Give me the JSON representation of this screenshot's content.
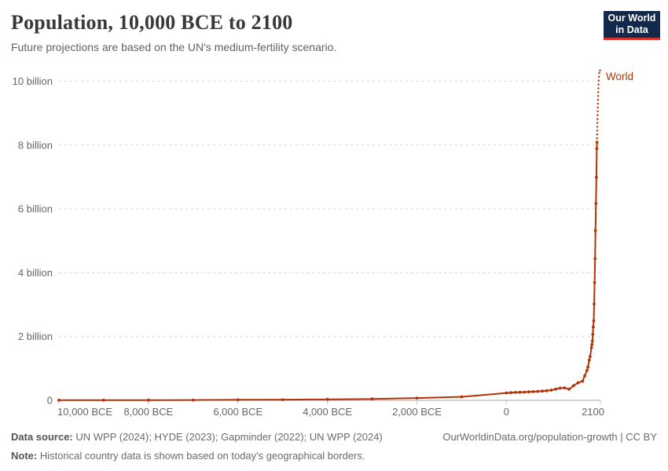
{
  "header": {
    "title": "Population, 10,000 BCE to 2100",
    "subtitle": "Future projections are based on the UN's medium-fertility scenario.",
    "logo": {
      "line1": "Our World",
      "line2": "in Data"
    }
  },
  "footer": {
    "sources_label": "Data source:",
    "sources_text": " UN WPP (2024); HYDE (2023); Gapminder (2022); UN WPP (2024)",
    "note_label": "Note:",
    "note_text": " Historical country data is shown based on today's geographical borders.",
    "citation": "OurWorldinData.org/population-growth | CC BY"
  },
  "colors": {
    "series": "#b13507",
    "grid": "#d9d9d9",
    "axis": "#a8a8a8",
    "tick": "#c4c4c4",
    "axis_label": "#666666",
    "logo_bg": "#12294b",
    "logo_accent": "#d7332e"
  },
  "chart_data": {
    "type": "line",
    "title": "Population, 10,000 BCE to 2100",
    "series_label": "World",
    "unit": "billion people",
    "x_range": [
      -10000,
      2100
    ],
    "y_range": [
      0,
      10.5
    ],
    "grid": "horizontal-dashed",
    "legend_position": "line-end-right",
    "y_ticks": [
      {
        "value": 0,
        "label": "0"
      },
      {
        "value": 2,
        "label": "2 billion"
      },
      {
        "value": 4,
        "label": "4 billion"
      },
      {
        "value": 6,
        "label": "6 billion"
      },
      {
        "value": 8,
        "label": "8 billion"
      },
      {
        "value": 10,
        "label": "10 billion"
      }
    ],
    "x_ticks": [
      {
        "year": -10000,
        "label": "10,000 BCE"
      },
      {
        "year": -8000,
        "label": "8,000 BCE"
      },
      {
        "year": -6000,
        "label": "6,000 BCE"
      },
      {
        "year": -4000,
        "label": "4,000 BCE"
      },
      {
        "year": -2000,
        "label": "2,000 BCE"
      },
      {
        "year": 0,
        "label": "0"
      },
      {
        "year": 2100,
        "label": "2100"
      }
    ],
    "series": [
      {
        "name": "World (historical)",
        "style": "solid",
        "points": [
          [
            -10000,
            0.004
          ],
          [
            -9000,
            0.006
          ],
          [
            -8000,
            0.008
          ],
          [
            -7000,
            0.011
          ],
          [
            -6000,
            0.016
          ],
          [
            -5000,
            0.022
          ],
          [
            -4000,
            0.031
          ],
          [
            -3000,
            0.045
          ],
          [
            -2000,
            0.072
          ],
          [
            -1000,
            0.11
          ],
          [
            0,
            0.232
          ],
          [
            100,
            0.24
          ],
          [
            200,
            0.248
          ],
          [
            300,
            0.253
          ],
          [
            400,
            0.258
          ],
          [
            500,
            0.265
          ],
          [
            600,
            0.272
          ],
          [
            700,
            0.28
          ],
          [
            800,
            0.29
          ],
          [
            900,
            0.3
          ],
          [
            1000,
            0.32
          ],
          [
            1100,
            0.35
          ],
          [
            1200,
            0.383
          ],
          [
            1300,
            0.39
          ],
          [
            1400,
            0.35
          ],
          [
            1500,
            0.46
          ],
          [
            1600,
            0.55
          ],
          [
            1700,
            0.6
          ],
          [
            1750,
            0.77
          ],
          [
            1800,
            0.94
          ],
          [
            1820,
            1.04
          ],
          [
            1850,
            1.26
          ],
          [
            1870,
            1.37
          ],
          [
            1900,
            1.65
          ],
          [
            1910,
            1.75
          ],
          [
            1920,
            1.86
          ],
          [
            1930,
            2.07
          ],
          [
            1940,
            2.3
          ],
          [
            1950,
            2.49
          ],
          [
            1960,
            3.02
          ],
          [
            1970,
            3.69
          ],
          [
            1980,
            4.44
          ],
          [
            1990,
            5.32
          ],
          [
            2000,
            6.17
          ],
          [
            2010,
            6.99
          ],
          [
            2020,
            7.89
          ],
          [
            2023,
            8.09
          ]
        ]
      },
      {
        "name": "World (UN medium-fertility projection)",
        "style": "dotted",
        "points": [
          [
            2023,
            8.09
          ],
          [
            2030,
            8.56
          ],
          [
            2040,
            9.16
          ],
          [
            2050,
            9.66
          ],
          [
            2060,
            10.01
          ],
          [
            2070,
            10.22
          ],
          [
            2080,
            10.32
          ],
          [
            2090,
            10.36
          ],
          [
            2100,
            10.27
          ]
        ]
      }
    ]
  }
}
